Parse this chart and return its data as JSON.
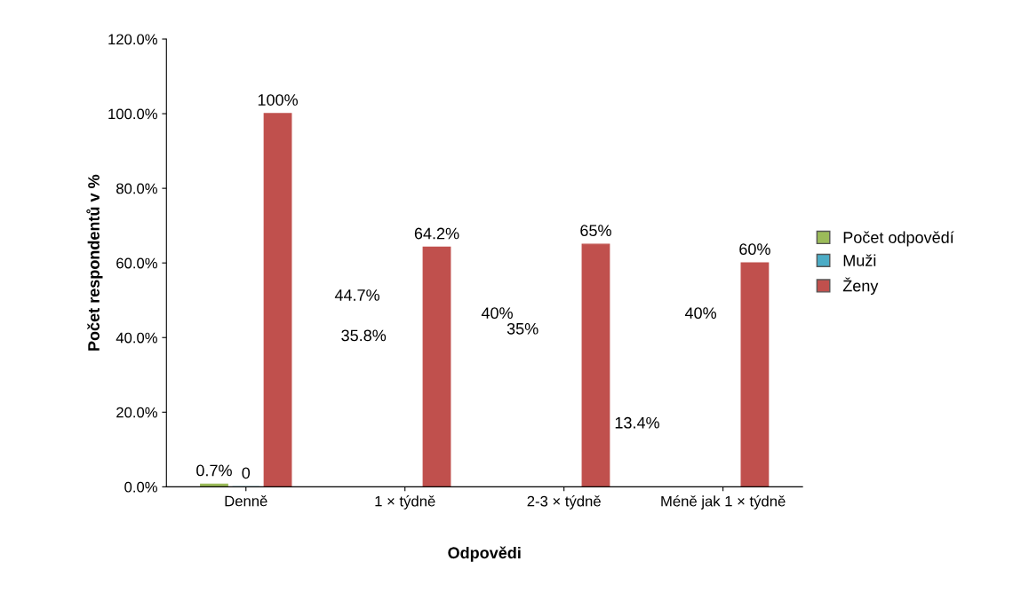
{
  "chart_data": {
    "type": "bar",
    "xlabel": "Odpovědi",
    "ylabel": "Počet respondentů v %",
    "categories": [
      "Denně",
      "1 × týdně",
      "2-3 × týdně",
      "Méně jak 1 × týdně"
    ],
    "series": [
      {
        "name": "Počet odpovědí",
        "color": "#9bbb59",
        "values": [
          0.7,
          null,
          null,
          null
        ],
        "value_labels": [
          "0.7%",
          null,
          null,
          null
        ]
      },
      {
        "name": "Muži",
        "color": "#4bacc6",
        "values": [
          0,
          null,
          null,
          null
        ],
        "value_labels": [
          "0",
          null,
          null,
          null
        ]
      },
      {
        "name": "Ženy",
        "color": "#c0504d",
        "values": [
          100,
          64.2,
          65,
          60
        ],
        "value_labels": [
          "100%",
          "64.2%",
          "65%",
          "60%"
        ]
      }
    ],
    "ylim": [
      0,
      120
    ],
    "yticks": [
      {
        "value": 0,
        "label": "0.0%"
      },
      {
        "value": 20,
        "label": "20.0%"
      },
      {
        "value": 40,
        "label": "40.0%"
      },
      {
        "value": 60,
        "label": "60.0%"
      },
      {
        "value": 80,
        "label": "80.0%"
      },
      {
        "value": 100,
        "label": "100.0%"
      },
      {
        "value": 120,
        "label": "120.0%"
      }
    ],
    "annotations": [
      "44.7%",
      "35.8%",
      "40%",
      "35%",
      "13.4%",
      "40%"
    ],
    "legend": "right",
    "grid": false
  }
}
